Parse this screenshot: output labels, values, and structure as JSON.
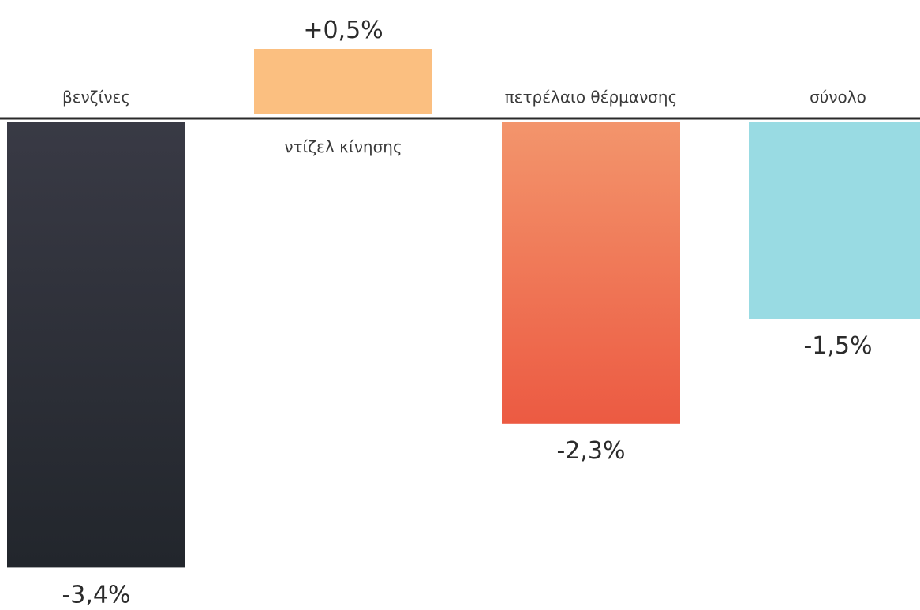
{
  "chart_data": {
    "type": "bar",
    "categories": [
      "βενζίνες",
      "ντίζελ κίνησης",
      "πετρέλαιο θέρμανσης",
      "σύνολο"
    ],
    "values": [
      -3.4,
      0.5,
      -2.3,
      -1.5
    ],
    "value_labels": [
      "-3,4%",
      "+0,5%",
      "-2,3%",
      "-1,5%"
    ],
    "unit": "%",
    "grid": false,
    "legend": "none",
    "colors": [
      {
        "top": "#393a45",
        "bottom": "#22262c"
      },
      {
        "top": "#fbbf80",
        "bottom": "#fbbf80"
      },
      {
        "top": "#f3956c",
        "bottom": "#ec5a42"
      },
      {
        "top": "#99dbe3",
        "bottom": "#99dbe3"
      }
    ]
  }
}
